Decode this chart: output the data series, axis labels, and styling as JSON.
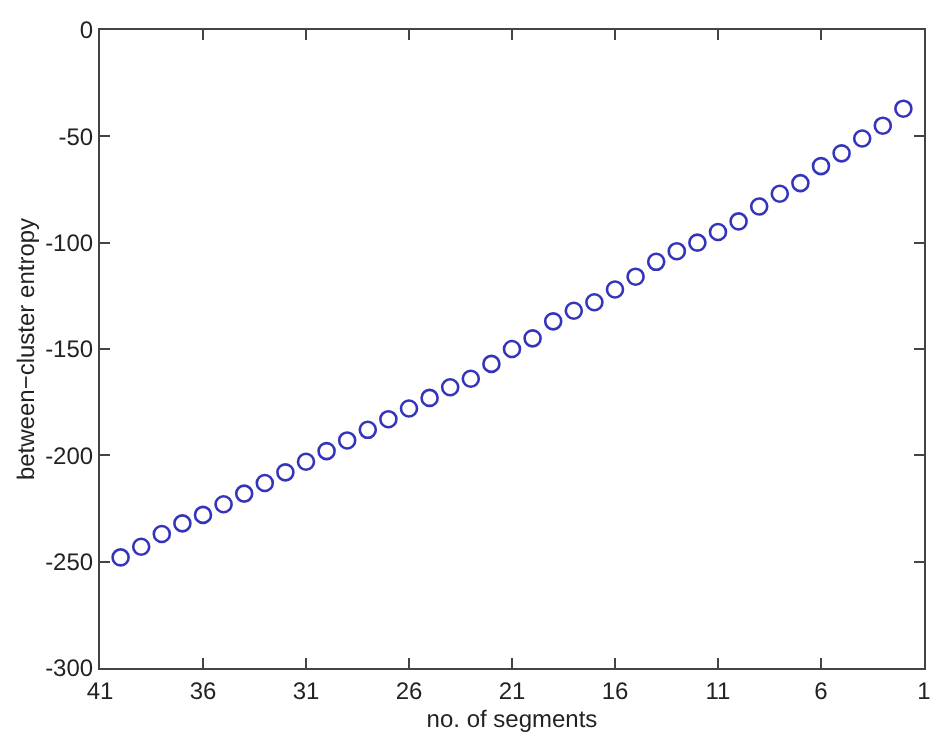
{
  "chart_data": {
    "type": "scatter",
    "xlabel": "no. of segments",
    "ylabel": "between−cluster entropy",
    "x": [
      40,
      39,
      38,
      37,
      36,
      35,
      34,
      33,
      32,
      31,
      30,
      29,
      28,
      27,
      26,
      25,
      24,
      23,
      22,
      21,
      20,
      19,
      18,
      17,
      16,
      15,
      14,
      13,
      12,
      11,
      10,
      9,
      8,
      7,
      6,
      5,
      4,
      3,
      2
    ],
    "series": [
      {
        "color": "#3333bb",
        "values": [
          -248,
          -243,
          -237,
          -232,
          -228,
          -223,
          -218,
          -213,
          -208,
          -203,
          -198,
          -193,
          -188,
          -183,
          -178,
          -173,
          -168,
          -164,
          -157,
          -150,
          -145,
          -137,
          -132,
          -128,
          -122,
          -116,
          -109,
          -104,
          -100,
          -95,
          -90,
          -83,
          -77,
          -72,
          -64,
          -58,
          -51,
          -45,
          -37
        ]
      }
    ],
    "marker": "circle",
    "xlim": [
      41,
      1
    ],
    "xticks": [
      41,
      36,
      31,
      26,
      21,
      16,
      11,
      6,
      1
    ],
    "ylim": [
      -300,
      0
    ],
    "yticks": [
      -300,
      -250,
      -200,
      -150,
      -100,
      -50,
      0
    ]
  }
}
